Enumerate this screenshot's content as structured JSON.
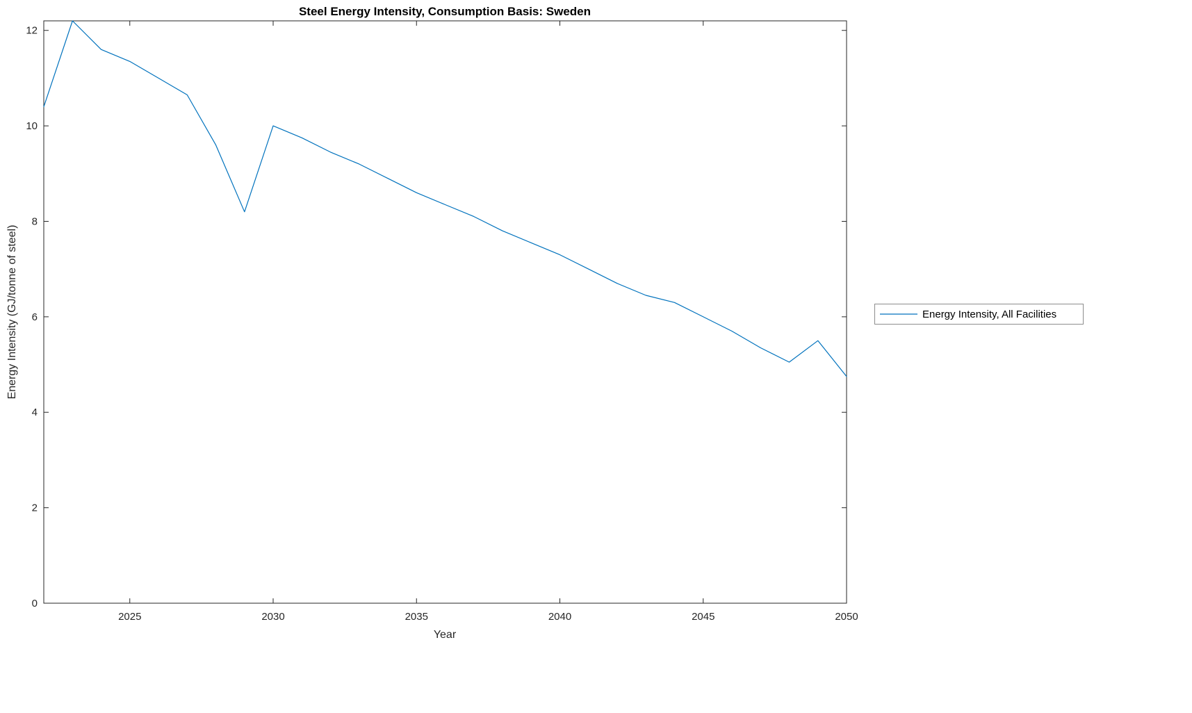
{
  "chart_data": {
    "type": "line",
    "title": "Steel Energy Intensity, Consumption Basis: Sweden",
    "xlabel": "Year",
    "ylabel": "Energy Intensity (GJ/tonne of steel)",
    "xlim": [
      2022,
      2050
    ],
    "ylim": [
      0,
      12.2
    ],
    "x_ticks": [
      2025,
      2030,
      2035,
      2040,
      2045,
      2050
    ],
    "y_ticks": [
      0,
      2,
      4,
      6,
      8,
      10,
      12
    ],
    "grid": false,
    "legend_position": "right-outside",
    "axis_color": "#262626",
    "series": [
      {
        "name": "Energy Intensity, All Facilities",
        "color": "#0072BD",
        "x": [
          2022,
          2023,
          2024,
          2025,
          2026,
          2027,
          2028,
          2029,
          2030,
          2031,
          2032,
          2033,
          2034,
          2035,
          2036,
          2037,
          2038,
          2039,
          2040,
          2041,
          2042,
          2043,
          2044,
          2045,
          2046,
          2047,
          2048,
          2049,
          2050
        ],
        "values": [
          10.4,
          12.2,
          11.6,
          11.35,
          11.0,
          10.65,
          9.6,
          8.2,
          10.0,
          9.75,
          9.45,
          9.2,
          8.9,
          8.6,
          8.35,
          8.1,
          7.8,
          7.55,
          7.3,
          7.0,
          6.7,
          6.45,
          6.3,
          6.0,
          5.7,
          5.35,
          5.05,
          5.5,
          4.75
        ]
      }
    ]
  }
}
